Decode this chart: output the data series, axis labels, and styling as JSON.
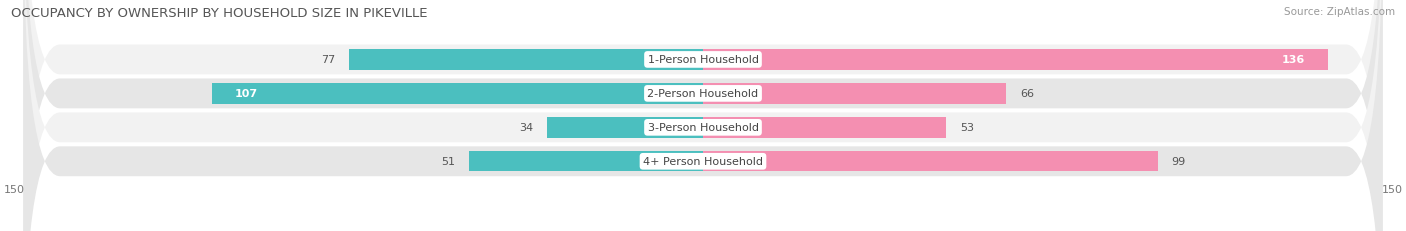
{
  "title": "OCCUPANCY BY OWNERSHIP BY HOUSEHOLD SIZE IN PIKEVILLE",
  "source": "Source: ZipAtlas.com",
  "categories": [
    "1-Person Household",
    "2-Person Household",
    "3-Person Household",
    "4+ Person Household"
  ],
  "owner_values": [
    77,
    107,
    34,
    51
  ],
  "renter_values": [
    136,
    66,
    53,
    99
  ],
  "max_val": 150,
  "owner_color": "#4BBFBF",
  "renter_color": "#F48FB1",
  "row_bg_light": "#F2F2F2",
  "row_bg_dark": "#E6E6E6",
  "title_fontsize": 9.5,
  "source_fontsize": 7.5,
  "label_fontsize": 8,
  "value_fontsize": 8,
  "axis_fontsize": 8,
  "legend_fontsize": 8
}
